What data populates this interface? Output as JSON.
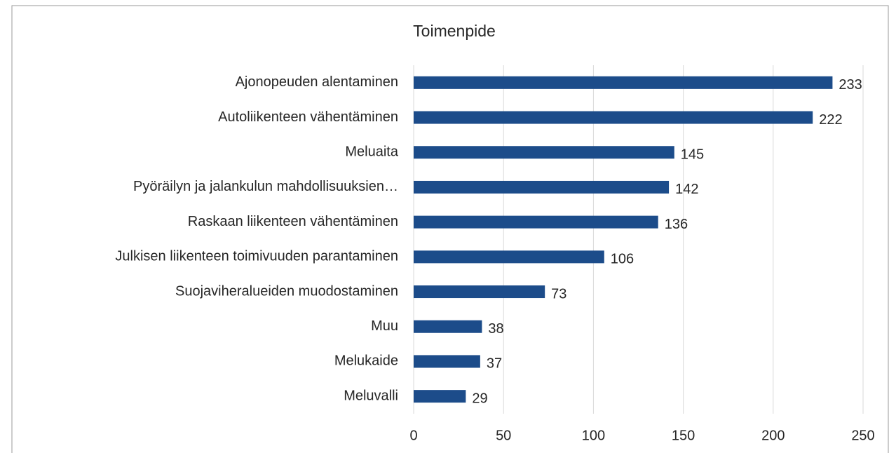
{
  "chart_data": {
    "type": "hbar",
    "title": "Toimenpide",
    "categories": [
      "Ajonopeuden alentaminen",
      "Autoliikenteen vähentäminen",
      "Meluaita",
      "Pyöräilyn ja jalankulun mahdollisuuksien…",
      "Raskaan liikenteen vähentäminen",
      "Julkisen liikenteen toimivuuden parantaminen",
      "Suojaviheralueiden muodostaminen",
      "Muu",
      "Melukaide",
      "Meluvalli"
    ],
    "values": [
      233,
      222,
      145,
      142,
      136,
      106,
      73,
      38,
      37,
      29
    ],
    "color": "#1c4c8a",
    "xlim": [
      0,
      250
    ],
    "xticks": [
      0,
      50,
      100,
      150,
      200,
      250
    ],
    "grid": true
  }
}
